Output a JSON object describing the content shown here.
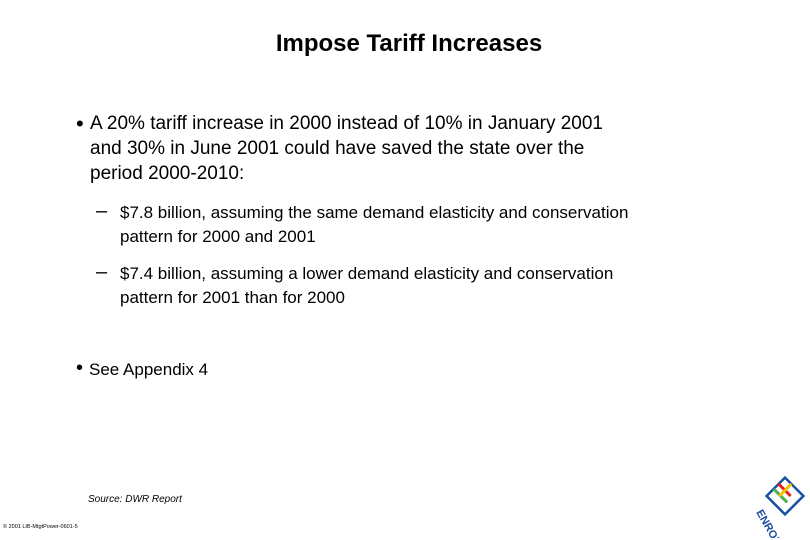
{
  "slide": {
    "title": "Impose Tariff Increases",
    "bullet1": {
      "line1": "A 20% tariff increase in 2000 instead of 10% in January 2001",
      "line2": "and 30% in June 2001 could have saved the state over the",
      "line3": "period 2000-2010:"
    },
    "sub1": {
      "line1": "$7.8 billion, assuming the same demand elasticity and conservation",
      "line2": "pattern for 2000 and 2001"
    },
    "sub2": {
      "line1": "$7.4 billion, assuming a lower demand elasticity and conservation",
      "line2": "pattern for 2001 than for 2000"
    },
    "bullet2": "See Appendix 4",
    "source": "Source: DWR Report",
    "copyright": "© 2001 LIB-MtgtPower-0601-5",
    "logo_text": "ENRON",
    "bullet_glyph": "•",
    "dash_glyph": "–"
  },
  "colors": {
    "logo_red": "#e2231a",
    "logo_green": "#4caf50",
    "logo_yellow": "#f2c200",
    "logo_blue": "#1a4ea1"
  }
}
